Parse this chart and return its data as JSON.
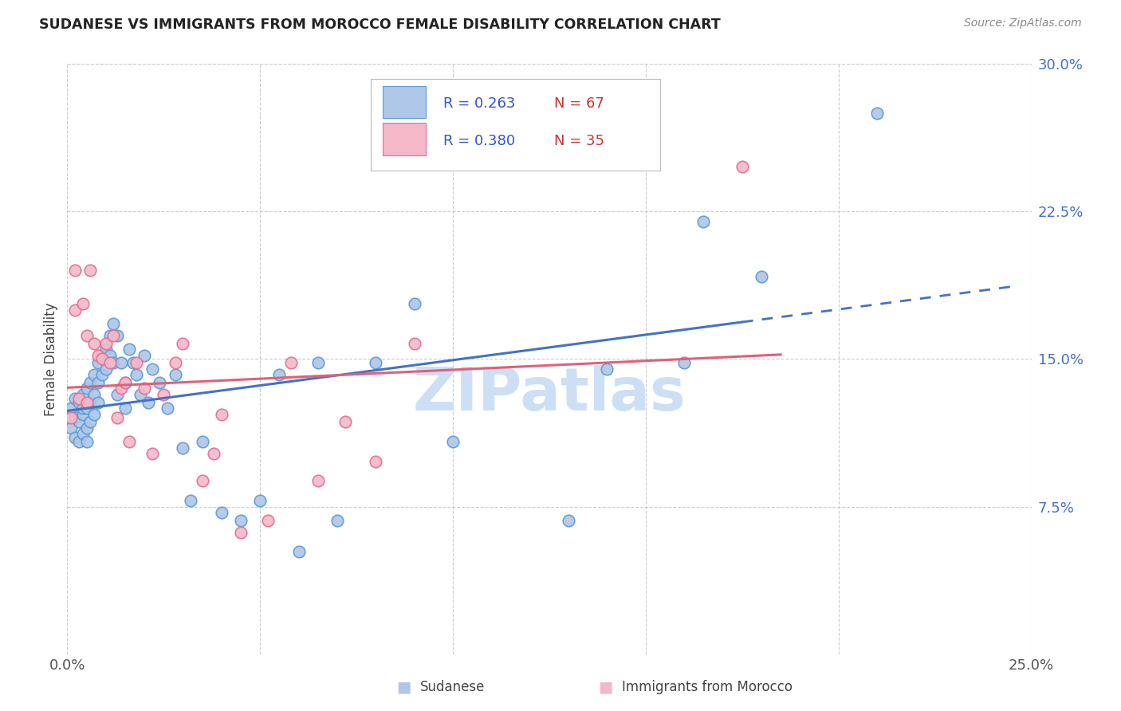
{
  "title": "SUDANESE VS IMMIGRANTS FROM MOROCCO FEMALE DISABILITY CORRELATION CHART",
  "source": "Source: ZipAtlas.com",
  "ylabel": "Female Disability",
  "xlim": [
    0.0,
    0.25
  ],
  "ylim": [
    0.0,
    0.3
  ],
  "xticks": [
    0.0,
    0.05,
    0.1,
    0.15,
    0.2,
    0.25
  ],
  "yticks": [
    0.0,
    0.075,
    0.15,
    0.225,
    0.3
  ],
  "ytick_labels": [
    "",
    "7.5%",
    "15.0%",
    "22.5%",
    "30.0%"
  ],
  "xtick_labels": [
    "0.0%",
    "",
    "",
    "",
    "",
    "25.0%"
  ],
  "series1_name": "Sudanese",
  "series1_R": "0.263",
  "series1_N": "67",
  "series1_color": "#aec6e8",
  "series1_edge": "#5b9bd5",
  "series2_name": "Immigrants from Morocco",
  "series2_R": "0.380",
  "series2_N": "35",
  "series2_color": "#f4b8c8",
  "series2_edge": "#e07090",
  "line1_color": "#4472c4",
  "line2_color": "#e0607a",
  "watermark": "ZIPatlas",
  "watermark_color": "#cddff5",
  "background_color": "#ffffff",
  "series1_x": [
    0.001,
    0.001,
    0.002,
    0.002,
    0.002,
    0.003,
    0.003,
    0.003,
    0.004,
    0.004,
    0.004,
    0.004,
    0.005,
    0.005,
    0.005,
    0.005,
    0.006,
    0.006,
    0.006,
    0.007,
    0.007,
    0.007,
    0.008,
    0.008,
    0.008,
    0.009,
    0.009,
    0.01,
    0.01,
    0.011,
    0.011,
    0.012,
    0.012,
    0.013,
    0.013,
    0.014,
    0.015,
    0.015,
    0.016,
    0.017,
    0.018,
    0.019,
    0.02,
    0.021,
    0.022,
    0.024,
    0.026,
    0.028,
    0.03,
    0.032,
    0.035,
    0.04,
    0.045,
    0.05,
    0.055,
    0.06,
    0.065,
    0.07,
    0.08,
    0.09,
    0.1,
    0.13,
    0.14,
    0.16,
    0.165,
    0.18,
    0.21
  ],
  "series1_y": [
    0.125,
    0.115,
    0.13,
    0.12,
    0.11,
    0.128,
    0.118,
    0.108,
    0.132,
    0.122,
    0.112,
    0.125,
    0.135,
    0.125,
    0.115,
    0.108,
    0.138,
    0.128,
    0.118,
    0.142,
    0.132,
    0.122,
    0.148,
    0.138,
    0.128,
    0.152,
    0.142,
    0.155,
    0.145,
    0.162,
    0.152,
    0.168,
    0.148,
    0.162,
    0.132,
    0.148,
    0.138,
    0.125,
    0.155,
    0.148,
    0.142,
    0.132,
    0.152,
    0.128,
    0.145,
    0.138,
    0.125,
    0.142,
    0.105,
    0.078,
    0.108,
    0.072,
    0.068,
    0.078,
    0.142,
    0.052,
    0.148,
    0.068,
    0.148,
    0.178,
    0.108,
    0.068,
    0.145,
    0.148,
    0.22,
    0.192,
    0.275
  ],
  "series2_x": [
    0.001,
    0.002,
    0.002,
    0.003,
    0.004,
    0.005,
    0.005,
    0.006,
    0.007,
    0.008,
    0.009,
    0.01,
    0.011,
    0.012,
    0.013,
    0.014,
    0.015,
    0.016,
    0.018,
    0.02,
    0.022,
    0.025,
    0.028,
    0.03,
    0.035,
    0.038,
    0.04,
    0.045,
    0.052,
    0.058,
    0.065,
    0.072,
    0.08,
    0.09,
    0.175
  ],
  "series2_y": [
    0.12,
    0.195,
    0.175,
    0.13,
    0.178,
    0.162,
    0.128,
    0.195,
    0.158,
    0.152,
    0.15,
    0.158,
    0.148,
    0.162,
    0.12,
    0.135,
    0.138,
    0.108,
    0.148,
    0.135,
    0.102,
    0.132,
    0.148,
    0.158,
    0.088,
    0.102,
    0.122,
    0.062,
    0.068,
    0.148,
    0.088,
    0.118,
    0.098,
    0.158,
    0.248
  ],
  "line1_x_start": 0.0,
  "line1_x_solid_end": 0.175,
  "line1_x_dash_end": 0.245,
  "line2_x_start": 0.0,
  "line2_x_end": 0.185
}
